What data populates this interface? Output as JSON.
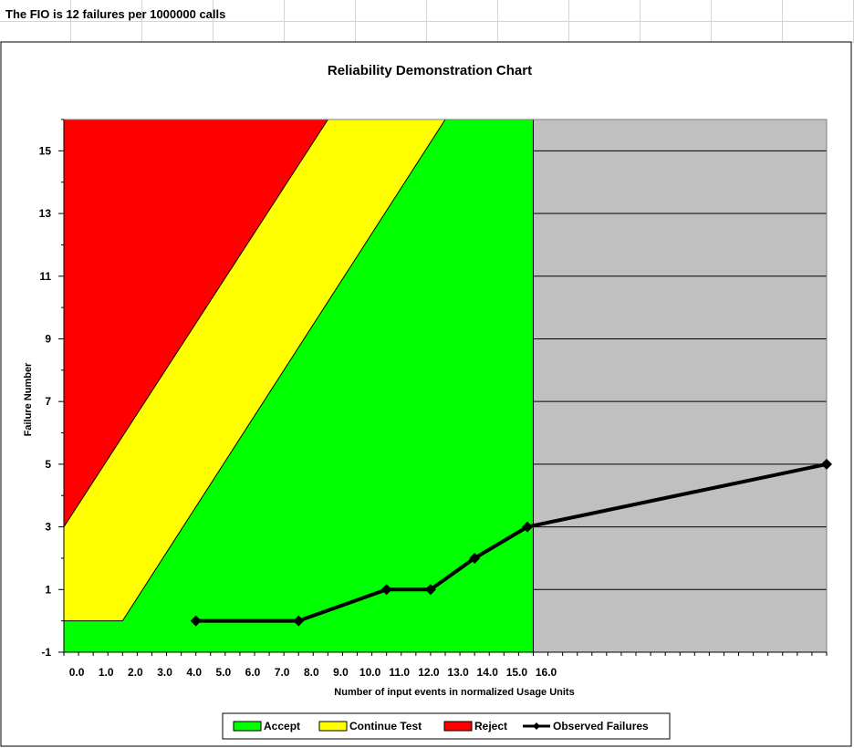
{
  "sheet": {
    "fio_text": "The FIO is 12 failures per 1000000 calls"
  },
  "chart_data": {
    "type": "line",
    "title": "Reliability Demonstration Chart",
    "xlabel": "Number of input events in normalized Usage Units",
    "ylabel": "Failure Number",
    "xlim": [
      0,
      26
    ],
    "ylim": [
      -1,
      16
    ],
    "x_tick_labels": [
      "0.0",
      "1.0",
      "2.0",
      "3.0",
      "4.0",
      "5.0",
      "6.0",
      "7.0",
      "8.0",
      "9.0",
      "10.0",
      "11.0",
      "12.0",
      "13.0",
      "14.0",
      "15.0",
      "16.0"
    ],
    "y_ticks": [
      -1,
      1,
      3,
      5,
      7,
      9,
      11,
      13,
      15
    ],
    "grid": "horizontal",
    "legend_position": "bottom",
    "region_boundary_x": 16,
    "regions": [
      {
        "name": "Accept",
        "color": "#00ff00"
      },
      {
        "name": "Continue Test",
        "color": "#ffff00",
        "lower_boundary": [
          [
            0,
            0
          ],
          [
            2,
            0
          ],
          [
            13,
            16
          ]
        ]
      },
      {
        "name": "Reject",
        "color": "#ff0000",
        "lower_boundary": [
          [
            0,
            3
          ],
          [
            9,
            16
          ]
        ]
      }
    ],
    "beyond_region_color": "#c0c0c0",
    "series": [
      {
        "name": "Observed Failures",
        "color": "#000000",
        "marker": "diamond",
        "x": [
          4.5,
          8.0,
          11.0,
          12.5,
          14.0,
          15.8,
          26.0
        ],
        "y": [
          0,
          0,
          1,
          1,
          2,
          3,
          5
        ]
      }
    ],
    "legend": [
      "Accept",
      "Continue Test",
      "Reject",
      "Observed Failures"
    ]
  }
}
